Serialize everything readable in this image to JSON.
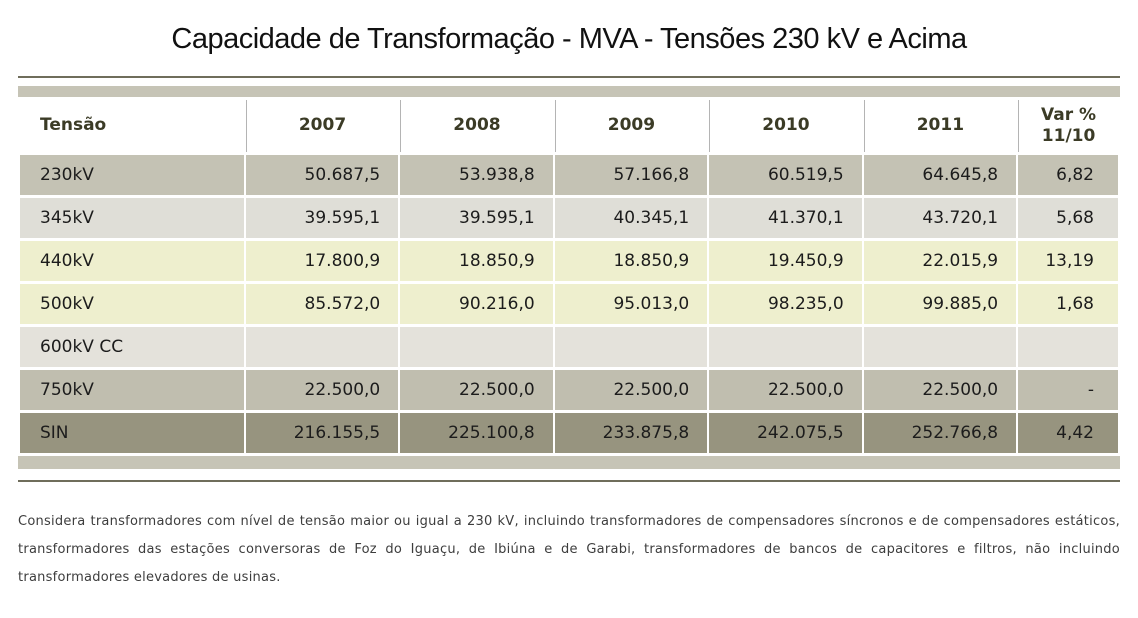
{
  "page": {
    "title": "Capacidade de Transformação - MVA - Tensões 230 kV e Acima",
    "footnote": "Considera transformadores com nível de tensão maior ou igual a 230 kV, incluindo transformadores de compensadores síncronos e de compensadores estáticos, transformadores das estações conversoras de Foz do Iguaçu, de Ibiúna e de Garabi, transformadores de bancos de capacitores e filtros, não incluindo transformadores elevadores de usinas."
  },
  "table": {
    "columns": [
      {
        "label": "Tensão"
      },
      {
        "label": "2007"
      },
      {
        "label": "2008"
      },
      {
        "label": "2009"
      },
      {
        "label": "2010"
      },
      {
        "label": "2011"
      },
      {
        "label": "Var % 11/10"
      }
    ],
    "rows": [
      {
        "label": "230kV",
        "values": [
          "50.687,5",
          "53.938,8",
          "57.166,8",
          "60.519,5",
          "64.645,8",
          "6,82"
        ],
        "bg": "#c4c2b4"
      },
      {
        "label": "345kV",
        "values": [
          "39.595,1",
          "39.595,1",
          "40.345,1",
          "41.370,1",
          "43.720,1",
          "5,68"
        ],
        "bg": "#dfded7"
      },
      {
        "label": "440kV",
        "values": [
          "17.800,9",
          "18.850,9",
          "18.850,9",
          "19.450,9",
          "22.015,9",
          "13,19"
        ],
        "bg": "#eeefce"
      },
      {
        "label": "500kV",
        "values": [
          "85.572,0",
          "90.216,0",
          "95.013,0",
          "98.235,0",
          "99.885,0",
          "1,68"
        ],
        "bg": "#eeefce"
      },
      {
        "label": "600kV CC",
        "values": [
          "",
          "",
          "",
          "",
          "",
          ""
        ],
        "bg": "#e4e2db"
      },
      {
        "label": "750kV",
        "values": [
          "22.500,0",
          "22.500,0",
          "22.500,0",
          "22.500,0",
          "22.500,0",
          "-"
        ],
        "bg": "#c0beaf"
      },
      {
        "label": "SIN",
        "values": [
          "216.155,5",
          "225.100,8",
          "233.875,8",
          "242.075,5",
          "252.766,8",
          "4,42"
        ],
        "bg": "#97947f"
      }
    ]
  },
  "colors": {
    "accent_bar": "#c6c4b6",
    "rule": "#6f6d5b",
    "header_text": "#3b3b26",
    "cell_text": "#1c1c1c",
    "footnote_text": "#3d3d3d"
  }
}
